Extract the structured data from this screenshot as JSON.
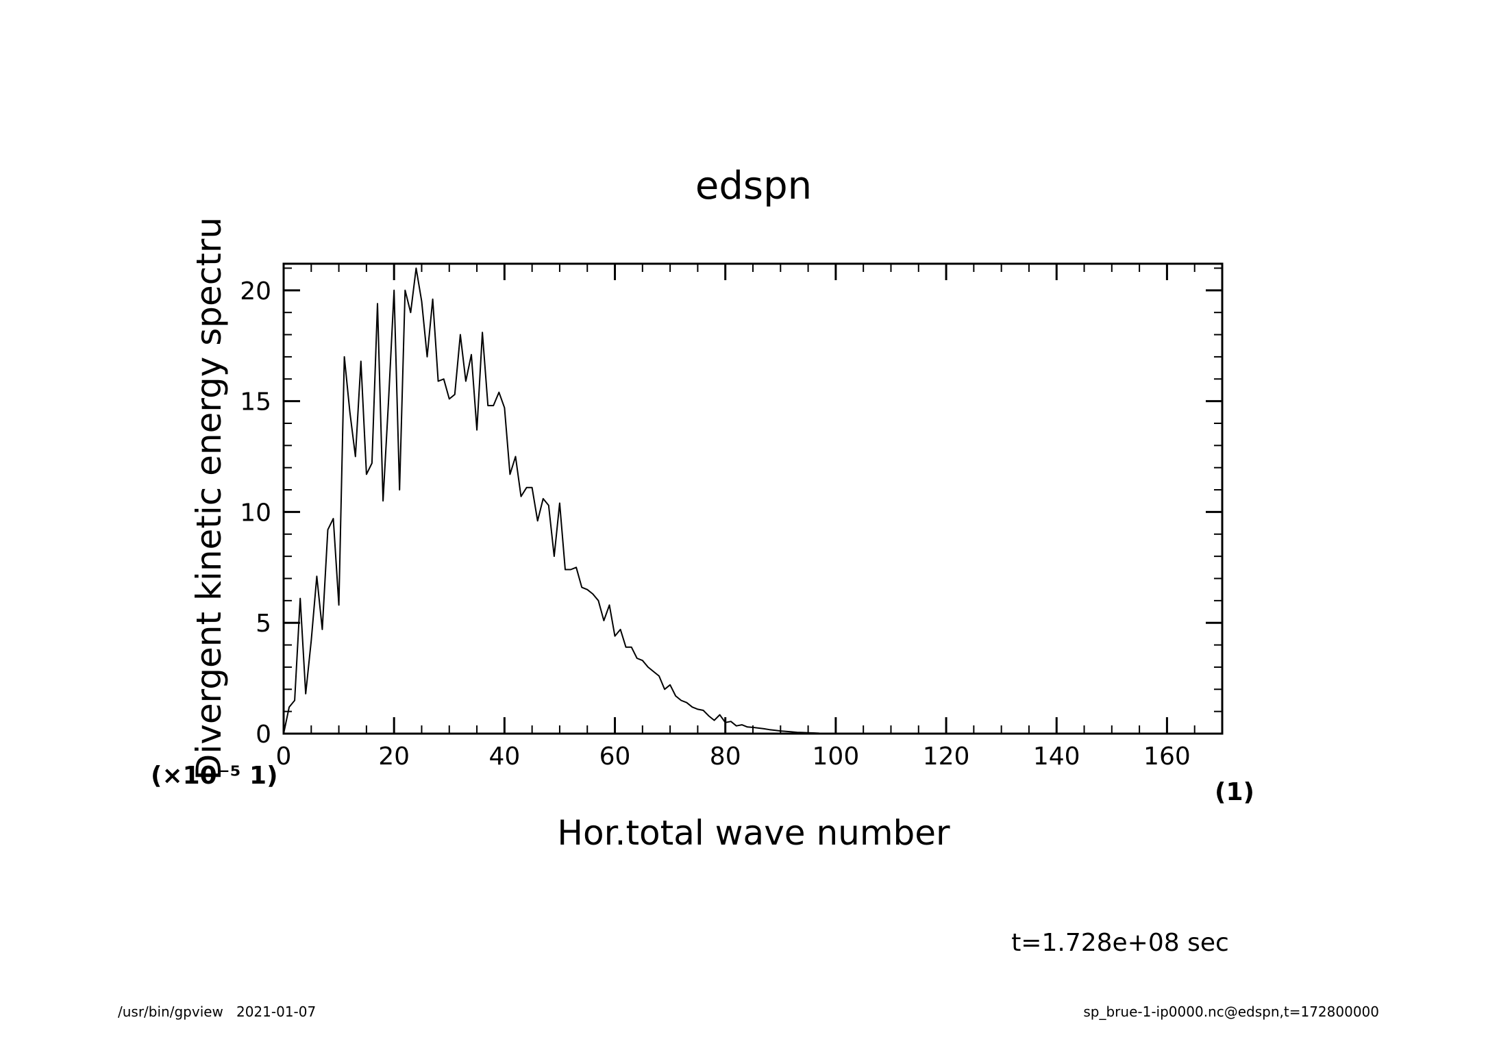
{
  "chart_data": {
    "type": "line",
    "title": "edspn",
    "xlabel": "Hor.total wave number",
    "ylabel": "Divergent kinetic energy spectru",
    "x_unit": "(1)",
    "y_unit": "(×10⁻⁵ 1)",
    "xlim": [
      0,
      170
    ],
    "ylim": [
      0,
      21.2
    ],
    "x_ticks": [
      0,
      20,
      40,
      60,
      80,
      100,
      120,
      140,
      160
    ],
    "y_ticks": [
      0,
      5,
      10,
      15,
      20
    ],
    "x_tick_labels": [
      "0",
      "20",
      "40",
      "60",
      "80",
      "100",
      "120",
      "140",
      "160"
    ],
    "y_tick_labels": [
      "0",
      "5",
      "10",
      "15",
      "20"
    ],
    "grid": false,
    "legend": "none",
    "line_color": "#000000",
    "series": [
      {
        "x": [
          0,
          1,
          2,
          3,
          4,
          5,
          6,
          7,
          8,
          9,
          10,
          11,
          12,
          13,
          14,
          15,
          16,
          17,
          18,
          19,
          20,
          21,
          22,
          23,
          24,
          25,
          26,
          27,
          28,
          29,
          30,
          31,
          32,
          33,
          34,
          35,
          36,
          37,
          38,
          39,
          40,
          41,
          42,
          43,
          44,
          45,
          46,
          47,
          48,
          49,
          50,
          51,
          52,
          53,
          54,
          55,
          56,
          57,
          58,
          59,
          60,
          61,
          62,
          63,
          64,
          65,
          66,
          67,
          68,
          69,
          70,
          71,
          72,
          73,
          74,
          75,
          76,
          77,
          78,
          79,
          80,
          81,
          82,
          83,
          84,
          85,
          86,
          87,
          88,
          89,
          90,
          91,
          92,
          93,
          94,
          95,
          96,
          97,
          98,
          99,
          100,
          110,
          120,
          130,
          140,
          150,
          160,
          170
        ],
        "y": [
          0,
          1.2,
          1.5,
          6.1,
          1.8,
          4.2,
          7.1,
          4.7,
          9.2,
          9.7,
          5.8,
          17.0,
          14.5,
          12.5,
          16.8,
          11.7,
          12.2,
          19.4,
          10.5,
          15.0,
          20.0,
          11.0,
          20.0,
          19.0,
          21.0,
          19.5,
          17.0,
          19.6,
          15.9,
          16.0,
          15.1,
          15.3,
          18.0,
          15.9,
          17.1,
          13.7,
          18.1,
          14.8,
          14.8,
          15.4,
          14.7,
          11.7,
          12.5,
          10.7,
          11.1,
          11.1,
          9.6,
          10.6,
          10.3,
          8.0,
          10.4,
          7.4,
          7.4,
          7.5,
          6.6,
          6.5,
          6.3,
          6.0,
          5.1,
          5.8,
          4.4,
          4.7,
          3.9,
          3.9,
          3.4,
          3.3,
          3.0,
          2.8,
          2.6,
          2.0,
          2.2,
          1.7,
          1.5,
          1.4,
          1.2,
          1.1,
          1.05,
          0.8,
          0.6,
          0.85,
          0.5,
          0.55,
          0.35,
          0.4,
          0.3,
          0.28,
          0.25,
          0.22,
          0.18,
          0.15,
          0.12,
          0.1,
          0.08,
          0.06,
          0.05,
          0.04,
          0.03,
          0.02,
          0.015,
          0.01,
          0.005,
          0,
          0,
          0,
          0,
          0,
          0,
          0
        ]
      }
    ]
  },
  "annotations": {
    "time_label": "t=1.728e+08 sec",
    "footer_left": "/usr/bin/gpview   2021-01-07",
    "footer_right": "sp_brue-1-ip0000.nc@edspn,t=172800000"
  }
}
